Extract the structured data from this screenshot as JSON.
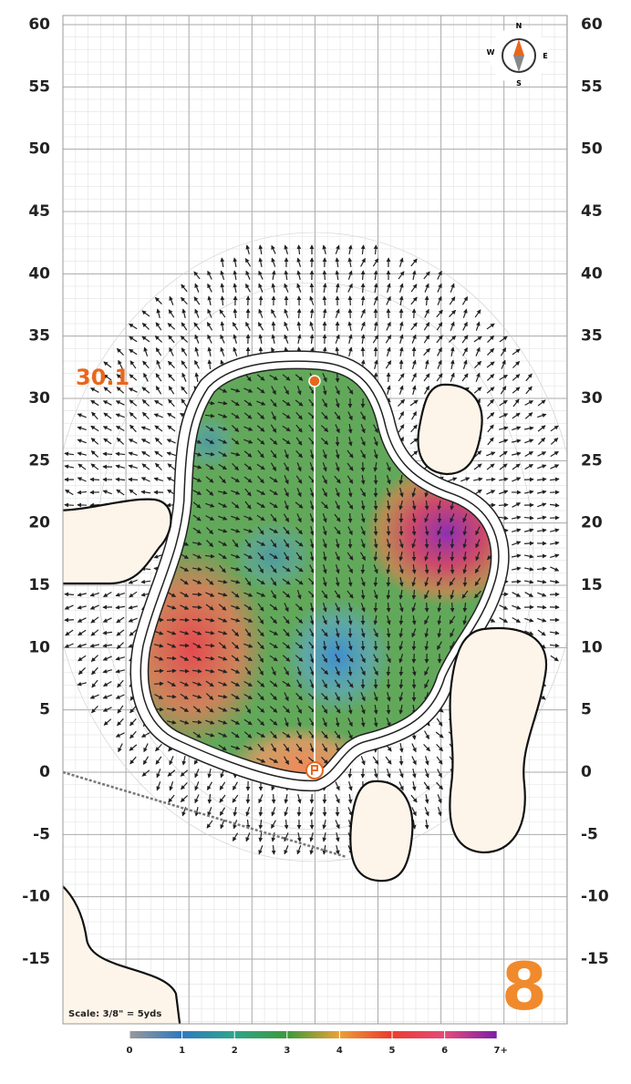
{
  "axis": {
    "ticks": [
      60,
      55,
      50,
      45,
      40,
      35,
      30,
      25,
      20,
      15,
      10,
      5,
      0,
      -5,
      -10,
      -15
    ]
  },
  "pin_marker": "30.1",
  "hole_number": "8",
  "scale_note": "Scale: 3/8\" = 5yds",
  "compass": {
    "n": "N",
    "e": "E",
    "s": "S",
    "w": "W"
  },
  "legend": {
    "labels": [
      "0",
      "1",
      "2",
      "3",
      "4",
      "5",
      "6",
      "7+"
    ]
  }
}
